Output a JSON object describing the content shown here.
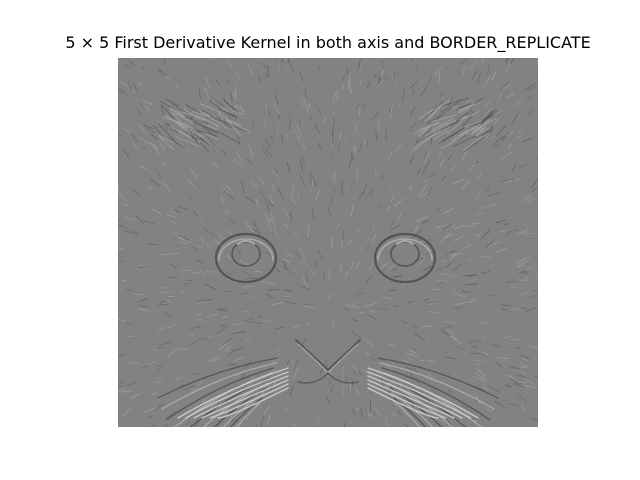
{
  "figure": {
    "title": "5 × 5 First Derivative Kernel in both axis and BORDER_REPLICATE"
  },
  "image": {
    "subject": "cat-face-edge-map",
    "background_gray": "#828282",
    "light_edge": "#b4b4b4",
    "dark_edge": "#4c4c4c"
  }
}
